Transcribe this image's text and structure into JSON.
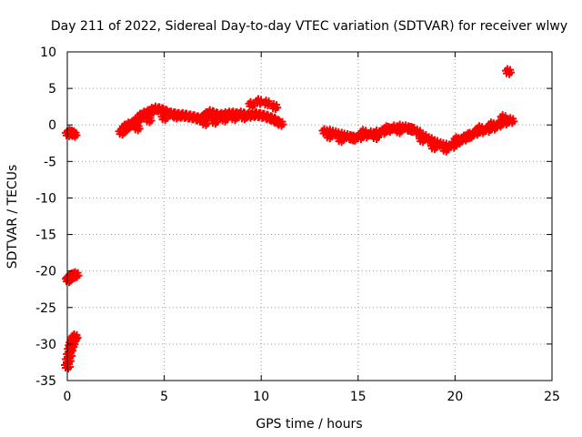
{
  "chart_data": {
    "type": "scatter",
    "title": "Day 211 of 2022, Sidereal Day-to-day VTEC variation (SDTVAR) for receiver wlwy",
    "xlabel": "GPS time / hours",
    "ylabel": "SDTVAR / TECUs",
    "xlim": [
      0,
      25
    ],
    "ylim": [
      -35,
      10
    ],
    "xticks": [
      0,
      5,
      10,
      15,
      20,
      25
    ],
    "yticks": [
      10,
      5,
      0,
      -5,
      -10,
      -15,
      -20,
      -25,
      -30,
      -35
    ],
    "grid": true,
    "marker_color": "#ff0000",
    "series": [
      {
        "name": "SDTVAR",
        "x": [
          0.05,
          0.15,
          0.25,
          0.35,
          0.05,
          0.1,
          0.18,
          0.25,
          0.35,
          0.45,
          0.0,
          0.05,
          0.1,
          0.15,
          0.2,
          0.25,
          0.3,
          0.35,
          0.4,
          2.8,
          3.0,
          3.2,
          3.4,
          3.6,
          3.8,
          4.0,
          4.2,
          4.4,
          4.6,
          4.8,
          5.0,
          5.2,
          5.4,
          5.6,
          5.8,
          6.0,
          6.2,
          6.4,
          6.6,
          6.8,
          7.0,
          7.2,
          7.4,
          7.6,
          7.8,
          8.0,
          8.2,
          8.4,
          8.6,
          8.8,
          9.0,
          9.2,
          9.4,
          9.6,
          9.8,
          10.0,
          10.2,
          10.4,
          10.6,
          10.8,
          11.0,
          3.0,
          3.6,
          4.2,
          5.0,
          5.6,
          7.1,
          7.6,
          8.1,
          8.6,
          9.1,
          9.5,
          9.9,
          10.3,
          10.7,
          13.3,
          13.6,
          13.9,
          14.2,
          14.5,
          14.8,
          15.1,
          15.4,
          15.7,
          16.0,
          16.3,
          16.6,
          16.9,
          17.2,
          17.5,
          17.8,
          18.1,
          18.4,
          18.7,
          19.0,
          19.3,
          19.6,
          19.9,
          20.2,
          20.5,
          20.8,
          21.1,
          21.4,
          21.7,
          22.0,
          22.3,
          22.6,
          22.9,
          13.5,
          14.1,
          14.7,
          15.3,
          15.9,
          16.5,
          17.1,
          17.7,
          18.3,
          18.9,
          19.5,
          20.1,
          20.7,
          21.3,
          21.9,
          22.5,
          22.75
        ],
        "y": [
          -1.2,
          -1.0,
          -1.1,
          -1.3,
          -21.2,
          -21.0,
          -20.8,
          -20.7,
          -20.6,
          -20.5,
          -33.0,
          -32.2,
          -31.5,
          -30.8,
          -30.3,
          -29.9,
          -29.5,
          -29.2,
          -29.0,
          -1.0,
          -0.5,
          0.0,
          0.2,
          0.6,
          1.2,
          1.5,
          1.7,
          2.0,
          2.2,
          2.1,
          1.9,
          1.6,
          1.5,
          1.4,
          1.3,
          1.3,
          1.2,
          1.1,
          1.0,
          0.8,
          0.9,
          1.4,
          1.7,
          1.5,
          1.3,
          1.3,
          1.4,
          1.5,
          1.5,
          1.4,
          1.5,
          1.3,
          1.3,
          1.4,
          1.4,
          1.3,
          1.2,
          1.0,
          0.8,
          0.5,
          0.2,
          -0.3,
          -0.4,
          0.7,
          1.0,
          1.2,
          0.3,
          0.5,
          0.8,
          1.0,
          1.1,
          2.8,
          3.2,
          3.0,
          2.5,
          -0.9,
          -1.0,
          -1.2,
          -1.4,
          -1.6,
          -1.8,
          -1.6,
          -1.4,
          -1.2,
          -1.1,
          -0.9,
          -0.6,
          -0.4,
          -0.3,
          -0.4,
          -0.6,
          -1.0,
          -1.6,
          -2.0,
          -2.4,
          -2.7,
          -2.9,
          -2.8,
          -2.2,
          -1.8,
          -1.4,
          -1.0,
          -0.8,
          -0.6,
          -0.3,
          0.1,
          0.4,
          0.6,
          -1.5,
          -2.0,
          -1.8,
          -1.0,
          -1.6,
          -0.5,
          -0.8,
          -0.6,
          -2.0,
          -3.0,
          -3.3,
          -2.0,
          -1.5,
          -0.5,
          0.0,
          1.0,
          7.3
        ]
      }
    ]
  }
}
